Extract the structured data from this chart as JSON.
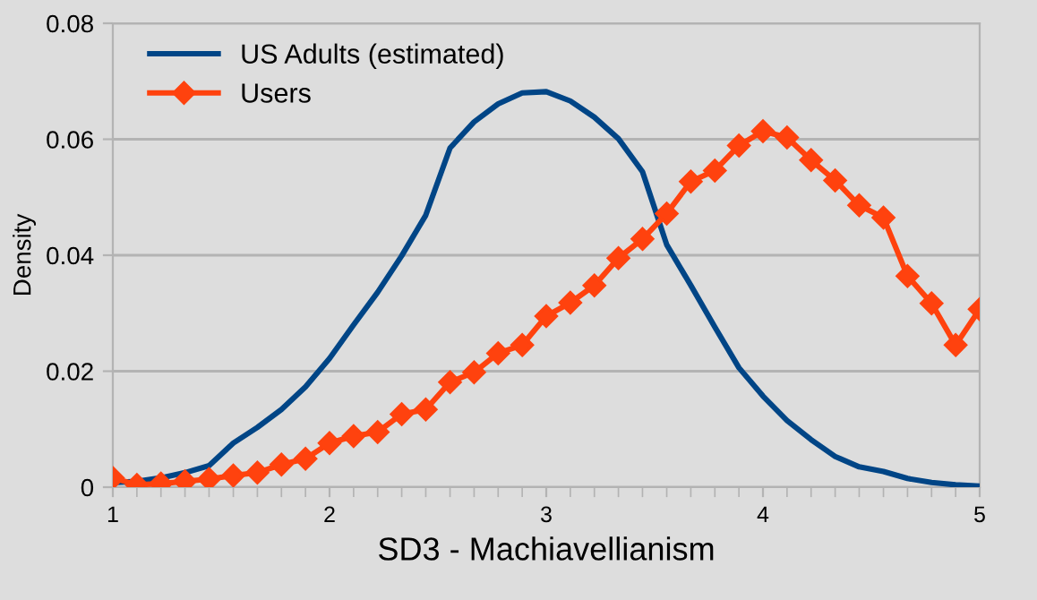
{
  "chart_data": {
    "type": "line",
    "xlabel": "SD3 - Machiavellianism",
    "ylabel": "Density",
    "x": [
      1,
      1.111,
      1.222,
      1.333,
      1.444,
      1.556,
      1.667,
      1.778,
      1.889,
      2,
      2.111,
      2.222,
      2.333,
      2.444,
      2.556,
      2.667,
      2.778,
      2.889,
      3,
      3.111,
      3.222,
      3.333,
      3.444,
      3.556,
      3.667,
      3.778,
      3.889,
      4,
      4.111,
      4.222,
      4.333,
      4.444,
      4.556,
      4.667,
      4.778,
      4.889,
      5
    ],
    "series": [
      {
        "name": "US Adults (estimated)",
        "color": "#004586",
        "marker": "none",
        "values": [
          0.0008,
          0.001,
          0.0016,
          0.0025,
          0.0037,
          0.0076,
          0.0103,
          0.0134,
          0.0173,
          0.0222,
          0.028,
          0.0336,
          0.0399,
          0.0469,
          0.0585,
          0.063,
          0.0661,
          0.068,
          0.0682,
          0.0666,
          0.0638,
          0.0601,
          0.0544,
          0.0418,
          0.0348,
          0.0276,
          0.0206,
          0.0157,
          0.0115,
          0.0082,
          0.0053,
          0.0035,
          0.0027,
          0.0015,
          0.0008,
          0.0004,
          0.0002
        ]
      },
      {
        "name": "Users",
        "color": "#ff420e",
        "marker": "diamond",
        "values": [
          0.0016,
          0.0004,
          0.0006,
          0.001,
          0.0014,
          0.002,
          0.0025,
          0.0039,
          0.0049,
          0.0076,
          0.0088,
          0.0095,
          0.0126,
          0.0134,
          0.0181,
          0.0198,
          0.0231,
          0.0245,
          0.0295,
          0.0318,
          0.0348,
          0.0395,
          0.0428,
          0.0472,
          0.0527,
          0.0546,
          0.0589,
          0.0614,
          0.0603,
          0.0564,
          0.0529,
          0.0486,
          0.0465,
          0.0364,
          0.0317,
          0.0245,
          0.0307
        ]
      }
    ],
    "xlim": [
      1,
      5
    ],
    "xticks": [
      1,
      2,
      3,
      4,
      5
    ],
    "ylim": [
      0,
      0.08
    ],
    "yticks": [
      0,
      0.02,
      0.04,
      0.06,
      0.08
    ],
    "grid": "y",
    "legend": "top left",
    "line_style": "solid"
  }
}
